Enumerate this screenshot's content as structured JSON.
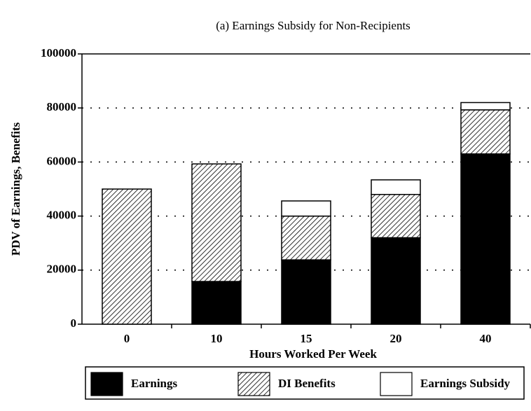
{
  "chart_data": {
    "type": "stacked_bar",
    "title": "(a)  Earnings Subsidy for Non-Recipients",
    "x_label": "Hours Worked Per Week",
    "y_label": "PDV of Earnings, Benefits",
    "categories": [
      "0",
      "10",
      "15",
      "20",
      "40"
    ],
    "series": [
      {
        "name": "Earnings",
        "color": "#000000",
        "values": [
          0,
          15800,
          23800,
          32000,
          63000
        ]
      },
      {
        "name": "DI Benefits",
        "color": "#ffffff",
        "pattern": "hatch",
        "values": [
          50000,
          43500,
          16200,
          16000,
          16300
        ]
      },
      {
        "name": "Earnings Subsidy",
        "color": "#ffffff",
        "values": [
          0,
          0,
          5600,
          5400,
          2700
        ]
      }
    ],
    "ylim": [
      0,
      100000
    ],
    "yticks": [
      0,
      20000,
      40000,
      60000,
      80000,
      100000
    ],
    "grid": true,
    "legend": "bottom"
  }
}
